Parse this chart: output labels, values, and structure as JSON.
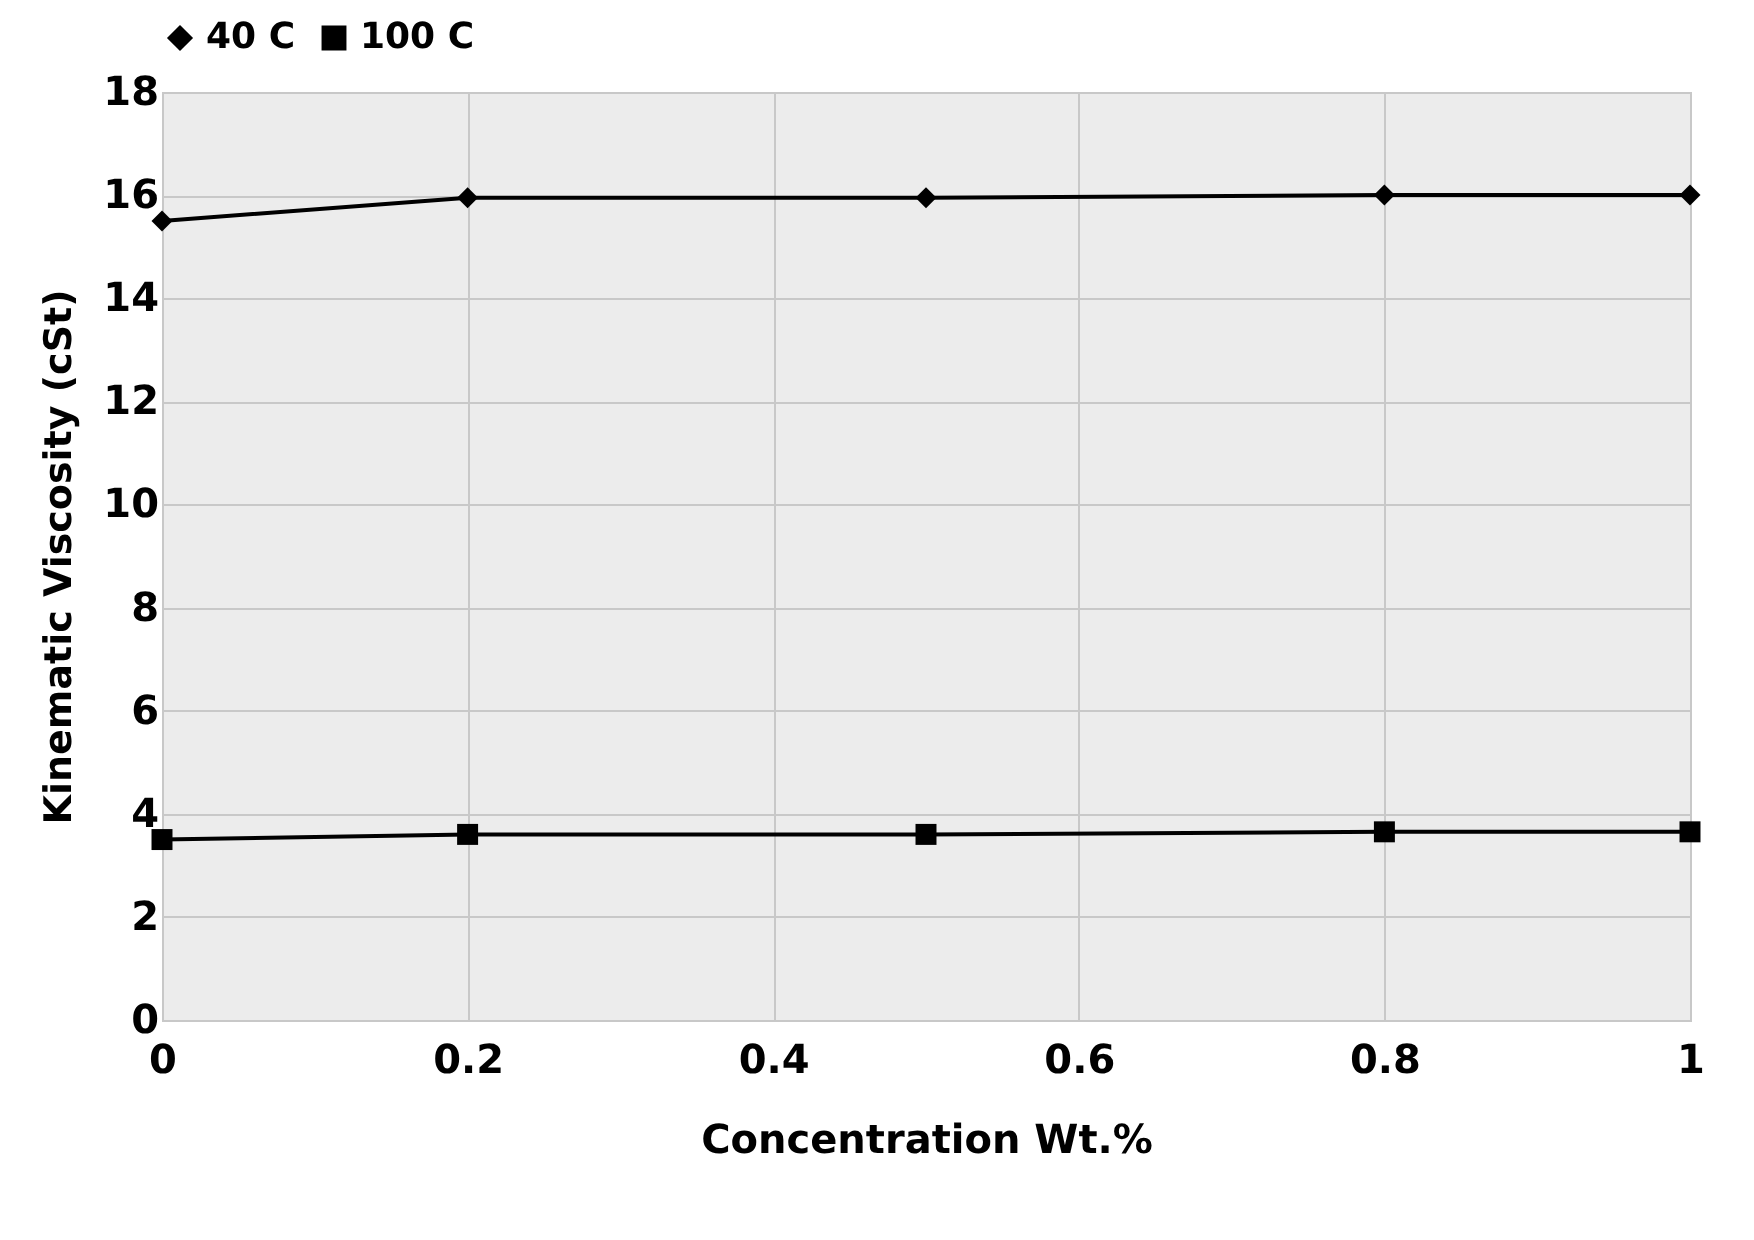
{
  "chart_data": {
    "type": "line",
    "xlabel": "Concentration Wt.%",
    "ylabel": "Kinematic Viscosity (cSt)",
    "x": [
      0,
      0.2,
      0.5,
      0.8,
      1
    ],
    "series": [
      {
        "name": "40 C",
        "color": "#000000",
        "marker": "diamond",
        "values": [
          15.5,
          15.95,
          15.95,
          16.0,
          16.0
        ]
      },
      {
        "name": "100 C",
        "color": "#000000",
        "marker": "square",
        "values": [
          3.5,
          3.6,
          3.6,
          3.65,
          3.65
        ]
      }
    ],
    "xlim": [
      0,
      1
    ],
    "xticks": [
      0,
      0.2,
      0.4,
      0.6,
      0.8,
      1
    ],
    "ylim": [
      0,
      18
    ],
    "yticks": [
      0,
      2,
      4,
      6,
      8,
      10,
      12,
      14,
      16,
      18
    ],
    "grid": true,
    "legend": "top",
    "line_style": "solid"
  }
}
